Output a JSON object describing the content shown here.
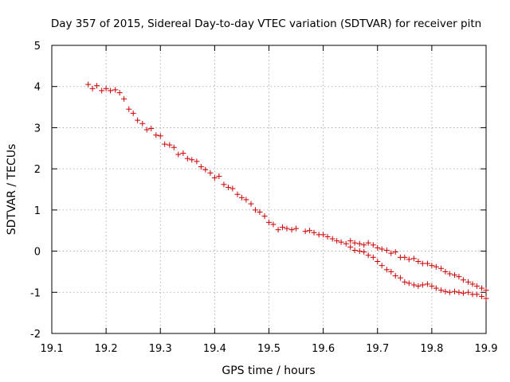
{
  "chart_data": {
    "type": "scatter",
    "title": "Day 357 of 2015, Sidereal Day-to-day VTEC variation (SDTVAR) for receiver pitn",
    "xlabel": "GPS time / hours",
    "ylabel": "SDTVAR / TECUs",
    "xlim": [
      19.1,
      19.9
    ],
    "ylim": [
      -2,
      5
    ],
    "grid": true,
    "x_ticks": [
      19.1,
      19.2,
      19.3,
      19.4,
      19.5,
      19.6,
      19.7,
      19.8,
      19.9
    ],
    "x_tick_labels": [
      "19.1",
      "19.2",
      "19.3",
      "19.4",
      "19.5",
      "19.6",
      "19.7",
      "19.8",
      "19.9"
    ],
    "y_ticks": [
      -2,
      -1,
      0,
      1,
      2,
      3,
      4,
      5
    ],
    "y_tick_labels": [
      "-2",
      "-1",
      "0",
      "1",
      "2",
      "3",
      "4",
      "5"
    ],
    "series": [
      {
        "name": "pitn",
        "marker": "+",
        "color": "#cc0000",
        "x": [
          19.167,
          19.175,
          19.183,
          19.192,
          19.2,
          19.208,
          19.217,
          19.225,
          19.233,
          19.242,
          19.25,
          19.258,
          19.267,
          19.275,
          19.283,
          19.292,
          19.3,
          19.308,
          19.317,
          19.325,
          19.333,
          19.342,
          19.35,
          19.358,
          19.367,
          19.375,
          19.383,
          19.392,
          19.4,
          19.408,
          19.417,
          19.425,
          19.433,
          19.442,
          19.45,
          19.458,
          19.467,
          19.475,
          19.483,
          19.492,
          19.5,
          19.508,
          19.517,
          19.525,
          19.533,
          19.542,
          19.55,
          19.567,
          19.575,
          19.583,
          19.592,
          19.6,
          19.608,
          19.617,
          19.625,
          19.633,
          19.642,
          19.65,
          19.658,
          19.667,
          19.675,
          19.683,
          19.692,
          19.7,
          19.708,
          19.717,
          19.725,
          19.733,
          19.742,
          19.75,
          19.758,
          19.767,
          19.775,
          19.783,
          19.792,
          19.8,
          19.808,
          19.817,
          19.825,
          19.833,
          19.842,
          19.85,
          19.858,
          19.867,
          19.875,
          19.883,
          19.892,
          19.9,
          19.65,
          19.658,
          19.667,
          19.675,
          19.683,
          19.692,
          19.7,
          19.708,
          19.717,
          19.725,
          19.733,
          19.742,
          19.75,
          19.758,
          19.767,
          19.775,
          19.783,
          19.792,
          19.8,
          19.808,
          19.817,
          19.825,
          19.833,
          19.842,
          19.85,
          19.858,
          19.867,
          19.875,
          19.883,
          19.892,
          19.9
        ],
        "y": [
          4.05,
          3.95,
          4.02,
          3.9,
          3.95,
          3.9,
          3.92,
          3.85,
          3.7,
          3.45,
          3.35,
          3.18,
          3.1,
          2.95,
          2.98,
          2.82,
          2.8,
          2.6,
          2.58,
          2.52,
          2.35,
          2.38,
          2.25,
          2.22,
          2.18,
          2.05,
          1.98,
          1.9,
          1.78,
          1.82,
          1.62,
          1.55,
          1.52,
          1.38,
          1.3,
          1.25,
          1.15,
          1.0,
          0.95,
          0.85,
          0.7,
          0.65,
          0.52,
          0.58,
          0.55,
          0.52,
          0.55,
          0.48,
          0.5,
          0.45,
          0.4,
          0.4,
          0.35,
          0.3,
          0.25,
          0.22,
          0.18,
          0.25,
          0.2,
          0.18,
          0.15,
          0.2,
          0.15,
          0.08,
          0.05,
          0.02,
          -0.05,
          -0.02,
          -0.15,
          -0.15,
          -0.2,
          -0.18,
          -0.25,
          -0.3,
          -0.3,
          -0.35,
          -0.38,
          -0.42,
          -0.5,
          -0.55,
          -0.58,
          -0.62,
          -0.7,
          -0.75,
          -0.8,
          -0.85,
          -0.9,
          -0.95,
          0.1,
          0.02,
          0.0,
          -0.02,
          -0.1,
          -0.15,
          -0.25,
          -0.35,
          -0.45,
          -0.5,
          -0.6,
          -0.65,
          -0.75,
          -0.78,
          -0.82,
          -0.85,
          -0.82,
          -0.8,
          -0.85,
          -0.9,
          -0.95,
          -0.98,
          -1.0,
          -0.98,
          -1.0,
          -1.02,
          -1.0,
          -1.05,
          -1.05,
          -1.1,
          -1.15
        ]
      }
    ]
  }
}
